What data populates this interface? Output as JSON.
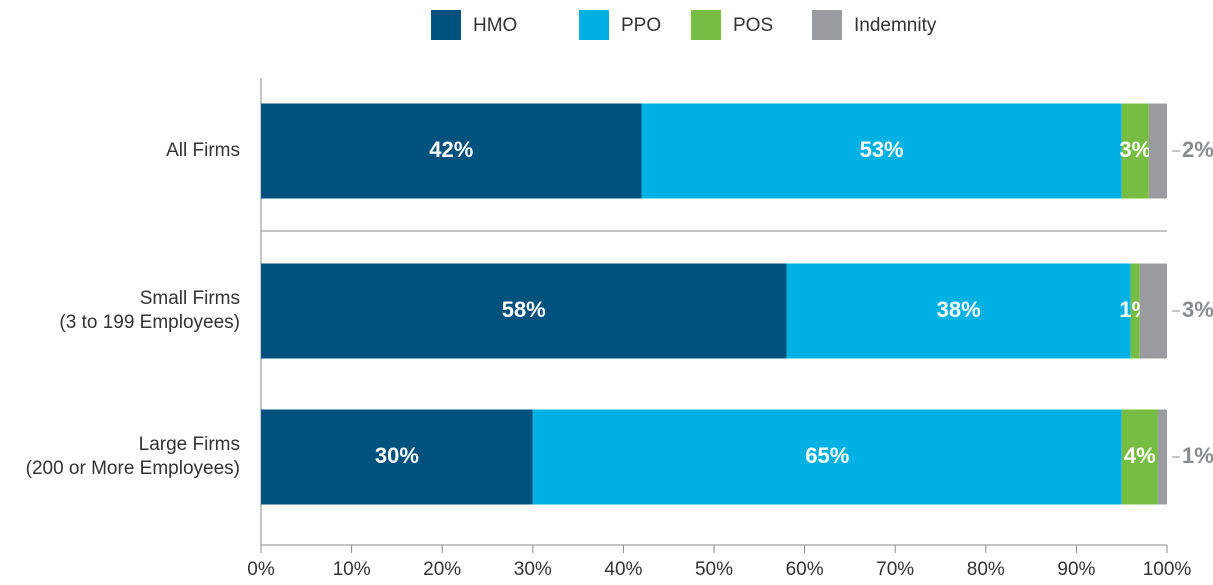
{
  "chart_data": {
    "type": "stacked-bar-horizontal",
    "categories": [
      "All Firms",
      "Small Firms\n(3 to 199 Employees)",
      "Large Firms\n(200 or More Employees)"
    ],
    "series": [
      {
        "name": "HMO",
        "color": "#00527e",
        "values": [
          42,
          58,
          30
        ],
        "value_labels": [
          "42%",
          "58%",
          "30%"
        ]
      },
      {
        "name": "PPO",
        "color": "#00b2e3",
        "values": [
          53,
          38,
          65
        ],
        "value_labels": [
          "53%",
          "38%",
          "65%"
        ]
      },
      {
        "name": "POS",
        "color": "#77bc43",
        "values": [
          3,
          1,
          4
        ],
        "value_labels": [
          "3%",
          "1%",
          "4%"
        ]
      },
      {
        "name": "Indemnity",
        "color": "#9a9b9f",
        "values": [
          2,
          3,
          1
        ],
        "value_labels": [
          "2%",
          "3%",
          "1%"
        ]
      }
    ],
    "xlim": [
      0,
      100
    ],
    "xticks": [
      {
        "value": 0,
        "label": "0%"
      },
      {
        "value": 10,
        "label": "10%"
      },
      {
        "value": 20,
        "label": "20%"
      },
      {
        "value": 30,
        "label": "30%"
      },
      {
        "value": 40,
        "label": "40%"
      },
      {
        "value": 50,
        "label": "50%"
      },
      {
        "value": 60,
        "label": "60%"
      },
      {
        "value": 70,
        "label": "70%"
      },
      {
        "value": 80,
        "label": "80%"
      },
      {
        "value": 90,
        "label": "90%"
      },
      {
        "value": 100,
        "label": "100%"
      }
    ],
    "legend": "top"
  }
}
